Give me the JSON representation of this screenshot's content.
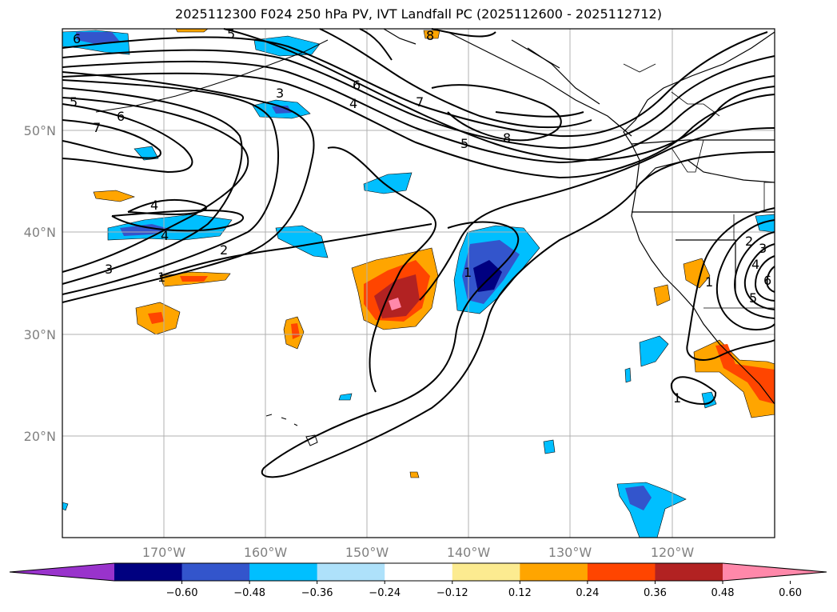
{
  "title": "2025112300 F024 250 hPa PV, IVT Landfall PC (2025112600 - 2025112712)",
  "lon_labels": [
    "170°W",
    "160°W",
    "150°W",
    "140°W",
    "130°W",
    "120°W"
  ],
  "lat_labels": [
    "50°N",
    "40°N",
    "30°N",
    "20°N"
  ],
  "pv_contour_labels": [
    "1",
    "2",
    "3",
    "4",
    "5",
    "6",
    "7",
    "8"
  ],
  "colorbar": {
    "ticks": [
      "−0.60",
      "−0.48",
      "−0.36",
      "−0.24",
      "−0.12",
      "0.12",
      "0.24",
      "0.36",
      "0.48",
      "0.60"
    ],
    "colors": [
      "#9933cc",
      "#000080",
      "#3355cc",
      "#00bfff",
      "#aee1fa",
      "#ffffff",
      "#fceb90",
      "#ffa500",
      "#ff4500",
      "#b22222",
      "#ff88aa"
    ]
  }
}
